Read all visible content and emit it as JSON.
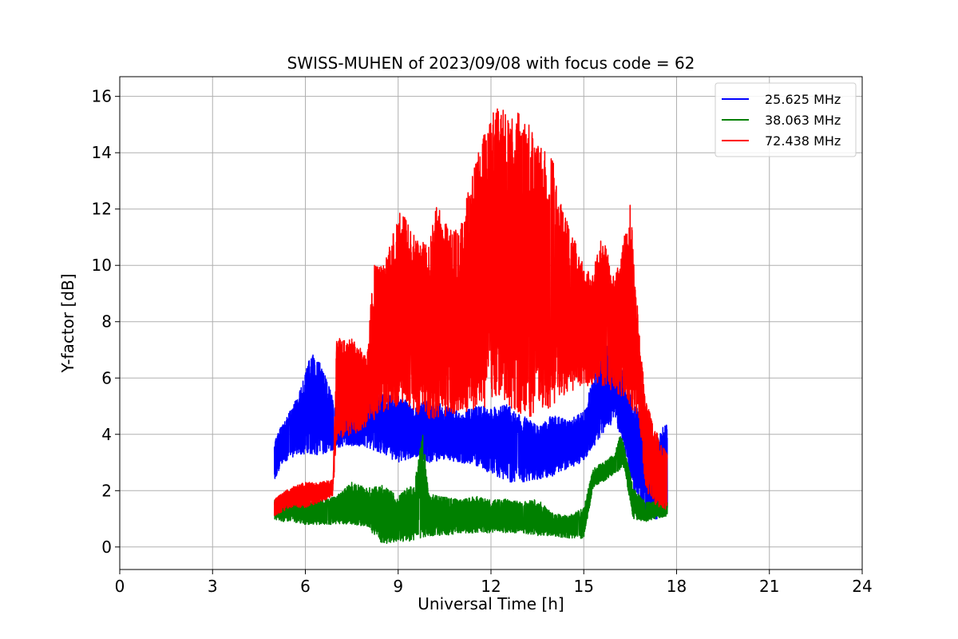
{
  "chart_data": {
    "type": "line",
    "title": "SWISS-MUHEN of 2023/09/08 with focus code = 62",
    "xlabel": "Universal Time [h]",
    "ylabel": "Y-factor [dB]",
    "xlim": [
      0,
      24
    ],
    "ylim": [
      -0.8,
      16.7
    ],
    "xticks": [
      0,
      3,
      6,
      9,
      12,
      15,
      18,
      21,
      24
    ],
    "yticks": [
      0,
      2,
      4,
      6,
      8,
      10,
      12,
      14,
      16
    ],
    "grid": true,
    "legend_position": "top-right",
    "colors": {
      "blue": "#0000ff",
      "green": "#008000",
      "red": "#ff0000",
      "grid": "#b0b0b0"
    },
    "series": [
      {
        "name": "25.625 MHz",
        "color": "#0000ff",
        "min_envelope": [
          [
            5.0,
            2.4
          ],
          [
            5.3,
            3.0
          ],
          [
            5.6,
            3.2
          ],
          [
            6.0,
            3.3
          ],
          [
            6.5,
            3.2
          ],
          [
            7.0,
            3.5
          ],
          [
            7.5,
            3.6
          ],
          [
            8.0,
            3.5
          ],
          [
            8.5,
            3.3
          ],
          [
            9.0,
            3.0
          ],
          [
            9.5,
            3.2
          ],
          [
            10.0,
            3.0
          ],
          [
            10.5,
            3.1
          ],
          [
            11.0,
            3.0
          ],
          [
            11.5,
            2.9
          ],
          [
            12.0,
            2.6
          ],
          [
            12.5,
            2.3
          ],
          [
            13.0,
            2.3
          ],
          [
            13.5,
            2.4
          ],
          [
            14.0,
            2.5
          ],
          [
            14.5,
            2.8
          ],
          [
            15.0,
            3.0
          ],
          [
            15.3,
            3.5
          ],
          [
            15.6,
            4.0
          ],
          [
            16.0,
            4.5
          ],
          [
            16.3,
            3.5
          ],
          [
            16.6,
            2.0
          ],
          [
            17.0,
            1.0
          ],
          [
            17.3,
            0.9
          ],
          [
            17.6,
            1.2
          ],
          [
            17.7,
            1.3
          ]
        ],
        "max_envelope": [
          [
            5.0,
            3.8
          ],
          [
            5.3,
            4.5
          ],
          [
            5.6,
            5.0
          ],
          [
            6.0,
            6.2
          ],
          [
            6.2,
            7.0
          ],
          [
            6.5,
            6.5
          ],
          [
            7.0,
            5.0
          ],
          [
            7.5,
            4.8
          ],
          [
            8.0,
            6.5
          ],
          [
            8.5,
            5.5
          ],
          [
            9.0,
            5.4
          ],
          [
            9.5,
            5.0
          ],
          [
            10.0,
            5.3
          ],
          [
            10.5,
            5.0
          ],
          [
            11.0,
            4.8
          ],
          [
            11.5,
            5.0
          ],
          [
            12.0,
            5.0
          ],
          [
            12.5,
            5.1
          ],
          [
            13.0,
            4.7
          ],
          [
            13.5,
            4.3
          ],
          [
            14.0,
            4.7
          ],
          [
            14.5,
            4.5
          ],
          [
            15.0,
            4.8
          ],
          [
            15.3,
            6.0
          ],
          [
            15.6,
            7.0
          ],
          [
            16.0,
            7.5
          ],
          [
            16.3,
            6.0
          ],
          [
            16.6,
            5.2
          ],
          [
            17.0,
            4.8
          ],
          [
            17.3,
            3.8
          ],
          [
            17.7,
            4.5
          ]
        ]
      },
      {
        "name": "38.063 MHz",
        "color": "#008000",
        "min_envelope": [
          [
            5.0,
            0.9
          ],
          [
            5.5,
            0.9
          ],
          [
            6.0,
            0.8
          ],
          [
            6.5,
            0.8
          ],
          [
            7.0,
            0.8
          ],
          [
            7.5,
            0.8
          ],
          [
            8.0,
            0.7
          ],
          [
            8.5,
            0.1
          ],
          [
            9.0,
            0.2
          ],
          [
            9.5,
            0.2
          ],
          [
            10.0,
            0.4
          ],
          [
            10.5,
            0.4
          ],
          [
            11.0,
            0.5
          ],
          [
            11.5,
            0.5
          ],
          [
            12.0,
            0.5
          ],
          [
            12.5,
            0.5
          ],
          [
            13.0,
            0.5
          ],
          [
            13.5,
            0.4
          ],
          [
            14.0,
            0.4
          ],
          [
            14.5,
            0.3
          ],
          [
            15.0,
            0.3
          ],
          [
            15.3,
            2.1
          ],
          [
            15.6,
            2.3
          ],
          [
            16.0,
            2.6
          ],
          [
            16.3,
            2.8
          ],
          [
            16.6,
            1.0
          ],
          [
            17.0,
            0.9
          ],
          [
            17.3,
            1.0
          ],
          [
            17.7,
            1.1
          ]
        ],
        "max_envelope": [
          [
            5.0,
            1.7
          ],
          [
            5.5,
            1.8
          ],
          [
            6.0,
            1.6
          ],
          [
            6.5,
            1.7
          ],
          [
            7.0,
            1.8
          ],
          [
            7.5,
            2.3
          ],
          [
            8.0,
            2.1
          ],
          [
            8.5,
            2.2
          ],
          [
            9.0,
            1.8
          ],
          [
            9.5,
            2.3
          ],
          [
            9.8,
            4.0
          ],
          [
            10.0,
            1.9
          ],
          [
            10.5,
            1.8
          ],
          [
            11.0,
            1.7
          ],
          [
            11.5,
            1.8
          ],
          [
            12.0,
            1.7
          ],
          [
            12.5,
            1.7
          ],
          [
            13.0,
            1.6
          ],
          [
            13.5,
            1.7
          ],
          [
            14.0,
            1.2
          ],
          [
            14.5,
            1.1
          ],
          [
            15.0,
            1.4
          ],
          [
            15.3,
            2.8
          ],
          [
            15.6,
            3.0
          ],
          [
            16.0,
            3.3
          ],
          [
            16.2,
            4.1
          ],
          [
            16.6,
            2.1
          ],
          [
            17.0,
            1.6
          ],
          [
            17.3,
            1.6
          ],
          [
            17.7,
            1.7
          ]
        ]
      },
      {
        "name": "72.438 MHz",
        "color": "#ff0000",
        "min_envelope": [
          [
            5.0,
            1.1
          ],
          [
            5.5,
            1.4
          ],
          [
            6.0,
            1.4
          ],
          [
            6.5,
            1.6
          ],
          [
            6.9,
            1.8
          ],
          [
            7.0,
            3.8
          ],
          [
            7.5,
            3.9
          ],
          [
            8.0,
            4.3
          ],
          [
            8.5,
            4.8
          ],
          [
            9.0,
            5.0
          ],
          [
            9.5,
            4.8
          ],
          [
            10.0,
            4.5
          ],
          [
            10.5,
            4.6
          ],
          [
            11.0,
            4.7
          ],
          [
            11.5,
            4.9
          ],
          [
            12.0,
            5.0
          ],
          [
            12.5,
            5.1
          ],
          [
            13.0,
            4.5
          ],
          [
            13.5,
            4.7
          ],
          [
            14.0,
            5.0
          ],
          [
            14.5,
            5.5
          ],
          [
            15.0,
            5.7
          ],
          [
            15.5,
            5.8
          ],
          [
            16.0,
            5.5
          ],
          [
            16.5,
            5.0
          ],
          [
            16.8,
            4.3
          ],
          [
            17.0,
            2.0
          ],
          [
            17.3,
            1.5
          ],
          [
            17.6,
            1.3
          ],
          [
            17.7,
            1.4
          ]
        ],
        "max_envelope": [
          [
            5.0,
            1.7
          ],
          [
            5.5,
            2.1
          ],
          [
            6.0,
            2.3
          ],
          [
            6.5,
            2.3
          ],
          [
            6.9,
            2.4
          ],
          [
            7.0,
            7.4
          ],
          [
            7.5,
            7.4
          ],
          [
            8.0,
            6.8
          ],
          [
            8.2,
            10.0
          ],
          [
            8.5,
            10.0
          ],
          [
            8.8,
            11.0
          ],
          [
            9.0,
            12.2
          ],
          [
            9.3,
            11.5
          ],
          [
            9.6,
            11.0
          ],
          [
            10.0,
            10.8
          ],
          [
            10.3,
            12.6
          ],
          [
            10.6,
            11.3
          ],
          [
            11.0,
            11.4
          ],
          [
            11.3,
            13.0
          ],
          [
            11.6,
            14.2
          ],
          [
            12.0,
            15.3
          ],
          [
            12.3,
            15.8
          ],
          [
            12.6,
            15.2
          ],
          [
            13.0,
            15.6
          ],
          [
            13.5,
            14.3
          ],
          [
            14.0,
            13.8
          ],
          [
            14.3,
            12.0
          ],
          [
            14.6,
            11.2
          ],
          [
            15.0,
            10.0
          ],
          [
            15.3,
            9.8
          ],
          [
            15.6,
            11.1
          ],
          [
            16.0,
            9.5
          ],
          [
            16.3,
            11.0
          ],
          [
            16.5,
            12.2
          ],
          [
            16.8,
            7.5
          ],
          [
            17.0,
            5.3
          ],
          [
            17.3,
            4.2
          ],
          [
            17.7,
            3.3
          ]
        ]
      }
    ]
  }
}
